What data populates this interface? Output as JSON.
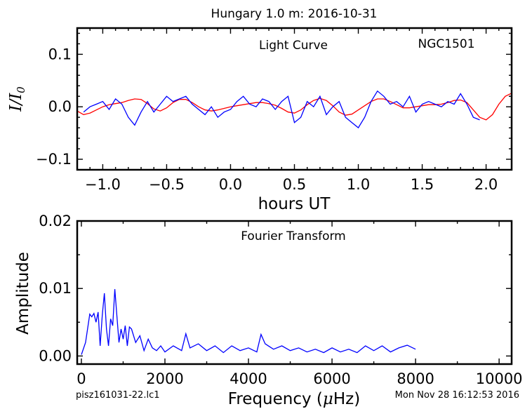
{
  "figure_title": "Hungary 1.0 m:  2016-10-31",
  "footer_left": "pisz161031-22.lc1",
  "footer_right": "Mon Nov 28 16:12:53 2016",
  "colors": {
    "data": "#0000ff",
    "fit": "#ff0000",
    "axes": "#000000"
  },
  "chart_data": [
    {
      "type": "line",
      "panel_label": "Light Curve",
      "object_label": "NGC1501",
      "xlabel": "hours UT",
      "ylabel": "I/I0",
      "xlim": [
        -1.2,
        2.2
      ],
      "ylim": [
        -0.12,
        0.15
      ],
      "xticks": [
        "−1.0",
        "−0.5",
        "0.0",
        "0.5",
        "1.0",
        "1.5",
        "2.0"
      ],
      "yticks": [
        "−0.1",
        "0.0",
        "0.1"
      ],
      "grid": false,
      "series": [
        {
          "role": "data",
          "x": [
            -1.15,
            -1.1,
            -1.05,
            -1.0,
            -0.95,
            -0.9,
            -0.85,
            -0.8,
            -0.75,
            -0.7,
            -0.65,
            -0.6,
            -0.55,
            -0.5,
            -0.45,
            -0.4,
            -0.35,
            -0.3,
            -0.25,
            -0.2,
            -0.15,
            -0.1,
            -0.05,
            0.0,
            0.05,
            0.1,
            0.15,
            0.2,
            0.25,
            0.3,
            0.35,
            0.4,
            0.45,
            0.5,
            0.55,
            0.6,
            0.65,
            0.7,
            0.75,
            0.8,
            0.85,
            0.9,
            0.95,
            1.0,
            1.05,
            1.1,
            1.15,
            1.2,
            1.25,
            1.3,
            1.35,
            1.4,
            1.45,
            1.5,
            1.55,
            1.6,
            1.65,
            1.7,
            1.75,
            1.8,
            1.85,
            1.9,
            1.95
          ],
          "y": [
            -0.01,
            0.0,
            0.005,
            0.01,
            -0.005,
            0.015,
            0.005,
            -0.02,
            -0.035,
            -0.01,
            0.01,
            -0.01,
            0.005,
            0.02,
            0.01,
            0.015,
            0.02,
            0.005,
            -0.005,
            -0.015,
            0.0,
            -0.02,
            -0.01,
            -0.005,
            0.01,
            0.02,
            0.005,
            0.0,
            0.015,
            0.01,
            -0.005,
            0.01,
            0.02,
            -0.03,
            -0.02,
            0.01,
            0.0,
            0.02,
            -0.015,
            0.0,
            0.01,
            -0.02,
            -0.03,
            -0.04,
            -0.02,
            0.01,
            0.03,
            0.02,
            0.005,
            0.01,
            0.0,
            0.02,
            -0.01,
            0.005,
            0.01,
            0.005,
            0.0,
            0.01,
            0.005,
            0.025,
            0.005,
            -0.02,
            -0.025
          ]
        },
        {
          "role": "fit",
          "x": [
            -1.2,
            -1.15,
            -1.1,
            -1.05,
            -1.0,
            -0.95,
            -0.9,
            -0.85,
            -0.8,
            -0.75,
            -0.7,
            -0.65,
            -0.6,
            -0.55,
            -0.5,
            -0.45,
            -0.4,
            -0.35,
            -0.3,
            -0.25,
            -0.2,
            -0.15,
            -0.1,
            -0.05,
            0.0,
            0.05,
            0.1,
            0.15,
            0.2,
            0.25,
            0.3,
            0.35,
            0.4,
            0.45,
            0.5,
            0.55,
            0.6,
            0.65,
            0.7,
            0.75,
            0.8,
            0.85,
            0.9,
            0.95,
            1.0,
            1.05,
            1.1,
            1.15,
            1.2,
            1.25,
            1.3,
            1.35,
            1.4,
            1.45,
            1.5,
            1.55,
            1.6,
            1.65,
            1.7,
            1.75,
            1.8,
            1.85,
            1.9,
            1.95,
            2.0,
            2.05,
            2.1,
            2.15,
            2.2
          ],
          "y": [
            -0.008,
            -0.015,
            -0.012,
            -0.006,
            0.0,
            0.004,
            0.006,
            0.008,
            0.012,
            0.015,
            0.014,
            0.006,
            -0.004,
            -0.008,
            -0.002,
            0.008,
            0.014,
            0.014,
            0.008,
            0.0,
            -0.006,
            -0.008,
            -0.006,
            -0.003,
            0.0,
            0.002,
            0.004,
            0.006,
            0.008,
            0.008,
            0.006,
            0.003,
            -0.003,
            -0.01,
            -0.012,
            -0.006,
            0.004,
            0.012,
            0.016,
            0.012,
            0.002,
            -0.01,
            -0.016,
            -0.014,
            -0.006,
            0.002,
            0.01,
            0.015,
            0.015,
            0.01,
            0.004,
            -0.002,
            -0.002,
            0.0,
            0.002,
            0.004,
            0.004,
            0.005,
            0.008,
            0.012,
            0.013,
            0.008,
            -0.006,
            -0.02,
            -0.025,
            -0.015,
            0.005,
            0.02,
            0.026
          ]
        }
      ]
    },
    {
      "type": "line",
      "panel_label": "Fourier Transform",
      "xlabel": "Frequency (μHz)",
      "ylabel": "Amplitude",
      "xlim": [
        -100,
        10300
      ],
      "ylim": [
        -0.0012,
        0.02
      ],
      "xticks": [
        "0",
        "2000",
        "4000",
        "6000",
        "8000",
        "10000"
      ],
      "yticks": [
        "0.00",
        "0.01",
        "0.02"
      ],
      "grid": false,
      "series": [
        {
          "role": "data",
          "x": [
            0,
            100,
            200,
            250,
            300,
            350,
            400,
            450,
            500,
            550,
            600,
            650,
            700,
            750,
            800,
            850,
            900,
            950,
            1000,
            1050,
            1100,
            1150,
            1200,
            1300,
            1400,
            1500,
            1600,
            1700,
            1800,
            1900,
            2000,
            2200,
            2400,
            2500,
            2600,
            2800,
            3000,
            3200,
            3400,
            3600,
            3800,
            4000,
            4200,
            4300,
            4400,
            4600,
            4800,
            5000,
            5200,
            5400,
            5600,
            5800,
            6000,
            6200,
            6400,
            6600,
            6800,
            7000,
            7200,
            7400,
            7600,
            7800,
            8000
          ],
          "y": [
            0.0002,
            0.002,
            0.0062,
            0.0058,
            0.0063,
            0.005,
            0.0065,
            0.0015,
            0.006,
            0.0093,
            0.004,
            0.0015,
            0.0055,
            0.0045,
            0.0099,
            0.006,
            0.002,
            0.004,
            0.0025,
            0.0045,
            0.0015,
            0.0043,
            0.004,
            0.002,
            0.003,
            0.0008,
            0.0025,
            0.0012,
            0.0008,
            0.0015,
            0.0006,
            0.0015,
            0.0008,
            0.0033,
            0.0012,
            0.0018,
            0.0008,
            0.0015,
            0.0005,
            0.0015,
            0.0008,
            0.0012,
            0.0006,
            0.0032,
            0.0018,
            0.001,
            0.0015,
            0.0008,
            0.0012,
            0.0006,
            0.001,
            0.0005,
            0.0012,
            0.0006,
            0.001,
            0.0005,
            0.0015,
            0.0008,
            0.0015,
            0.0006,
            0.0012,
            0.0016,
            0.001
          ]
        }
      ]
    }
  ]
}
